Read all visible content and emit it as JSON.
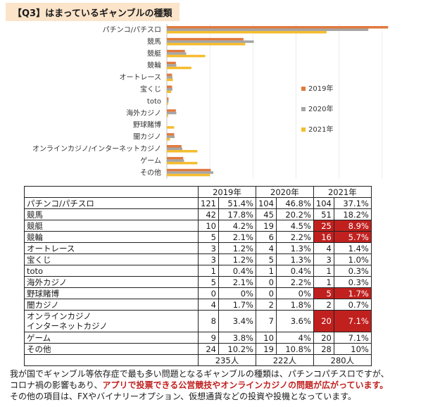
{
  "title": "【Q3】はまっているギャンブルの種類",
  "chart_data": {
    "type": "bar",
    "orientation": "horizontal",
    "categories": [
      "パチンコ/パチスロ",
      "競馬",
      "競艇",
      "競輪",
      "オートレース",
      "宝くじ",
      "toto",
      "海外カジノ",
      "野球賭博",
      "闇カジノ",
      "オンラインカジノ/インターネットカジノ",
      "ゲーム",
      "その他"
    ],
    "series": [
      {
        "name": "2019年",
        "color": "#e07a3e",
        "values": [
          51.4,
          17.8,
          4.2,
          2.1,
          1.2,
          1.2,
          0.4,
          2.1,
          0,
          1.7,
          3.4,
          3.8,
          10.2
        ]
      },
      {
        "name": "2020年",
        "color": "#a5a5a5",
        "values": [
          46.8,
          20.2,
          4.5,
          2.2,
          1.3,
          1.3,
          0.4,
          2.2,
          0,
          1.8,
          3.6,
          4,
          10.8
        ]
      },
      {
        "name": "2021年",
        "color": "#f5bd2e",
        "values": [
          37.1,
          18.2,
          8.9,
          5.7,
          1.4,
          1,
          0.3,
          0.3,
          1.7,
          0.7,
          7.1,
          7.1,
          10
        ]
      }
    ],
    "xlim": [
      0,
      52
    ],
    "grid": true,
    "legend_position": "right"
  },
  "table": {
    "headers": [
      "",
      "2019年",
      "2020年",
      "2021年"
    ],
    "rows": [
      {
        "label": "パチンコ/パチスロ",
        "v": [
          [
            "121",
            "51.4%"
          ],
          [
            "104",
            "46.8%"
          ],
          [
            "104",
            "37.1%"
          ]
        ],
        "hl": false
      },
      {
        "label": "競馬",
        "v": [
          [
            "42",
            "17.8%"
          ],
          [
            "45",
            "20.2%"
          ],
          [
            "51",
            "18.2%"
          ]
        ],
        "hl": false
      },
      {
        "label": "競艇",
        "v": [
          [
            "10",
            "4.2%"
          ],
          [
            "19",
            "4.5%"
          ],
          [
            "25",
            "8.9%"
          ]
        ],
        "hl": true
      },
      {
        "label": "競輪",
        "v": [
          [
            "5",
            "2.1%"
          ],
          [
            "6",
            "2.2%"
          ],
          [
            "16",
            "5.7%"
          ]
        ],
        "hl": true
      },
      {
        "label": "オートレース",
        "v": [
          [
            "3",
            "1.2%"
          ],
          [
            "4",
            "1.3%"
          ],
          [
            "4",
            "1.4%"
          ]
        ],
        "hl": false
      },
      {
        "label": "宝くじ",
        "v": [
          [
            "3",
            "1.2%"
          ],
          [
            "5",
            "1.3%"
          ],
          [
            "3",
            "1.0%"
          ]
        ],
        "hl": false
      },
      {
        "label": "toto",
        "v": [
          [
            "1",
            "0.4%"
          ],
          [
            "1",
            "0.4%"
          ],
          [
            "1",
            "0.3%"
          ]
        ],
        "hl": false
      },
      {
        "label": "海外カジノ",
        "v": [
          [
            "5",
            "2.1%"
          ],
          [
            "0",
            "2.2%"
          ],
          [
            "1",
            "0.3%"
          ]
        ],
        "hl": false
      },
      {
        "label": "野球賭博",
        "v": [
          [
            "0",
            "0%"
          ],
          [
            "0",
            "0%"
          ],
          [
            "5",
            "1.7%"
          ]
        ],
        "hl": true
      },
      {
        "label": "闇カジノ",
        "v": [
          [
            "4",
            "1.7%"
          ],
          [
            "2",
            "1.8%"
          ],
          [
            "2",
            "0.7%"
          ]
        ],
        "hl": false
      },
      {
        "label": "オンラインカジノ\nインターネットカジノ",
        "v": [
          [
            "8",
            "3.4%"
          ],
          [
            "7",
            "3.6%"
          ],
          [
            "20",
            "7.1%"
          ]
        ],
        "hl": true,
        "tall": true
      },
      {
        "label": "ゲーム",
        "v": [
          [
            "9",
            "3.8%"
          ],
          [
            "10",
            "4%"
          ],
          [
            "20",
            "7.1%"
          ]
        ],
        "hl": false
      },
      {
        "label": "その他",
        "v": [
          [
            "24",
            "10.2%"
          ],
          [
            "19",
            "10.8%"
          ],
          [
            "28",
            "10%"
          ]
        ],
        "hl": false
      }
    ],
    "totals": [
      "235人",
      "222人",
      "280人"
    ]
  },
  "footer": {
    "line1": "我が国でギャンブル等依存症で最も多い問題となるギャンブルの種類は、パチンコパチスロですが、",
    "line2a": "コロナ禍の影響もあり、",
    "line2b": "アプリで投票できる公営競技やオンラインカジノの問題が広がっています。",
    "line3": "その他の項目は、FXやバイナリーオプション、仮想通貨などの投資や投機となっています。"
  }
}
